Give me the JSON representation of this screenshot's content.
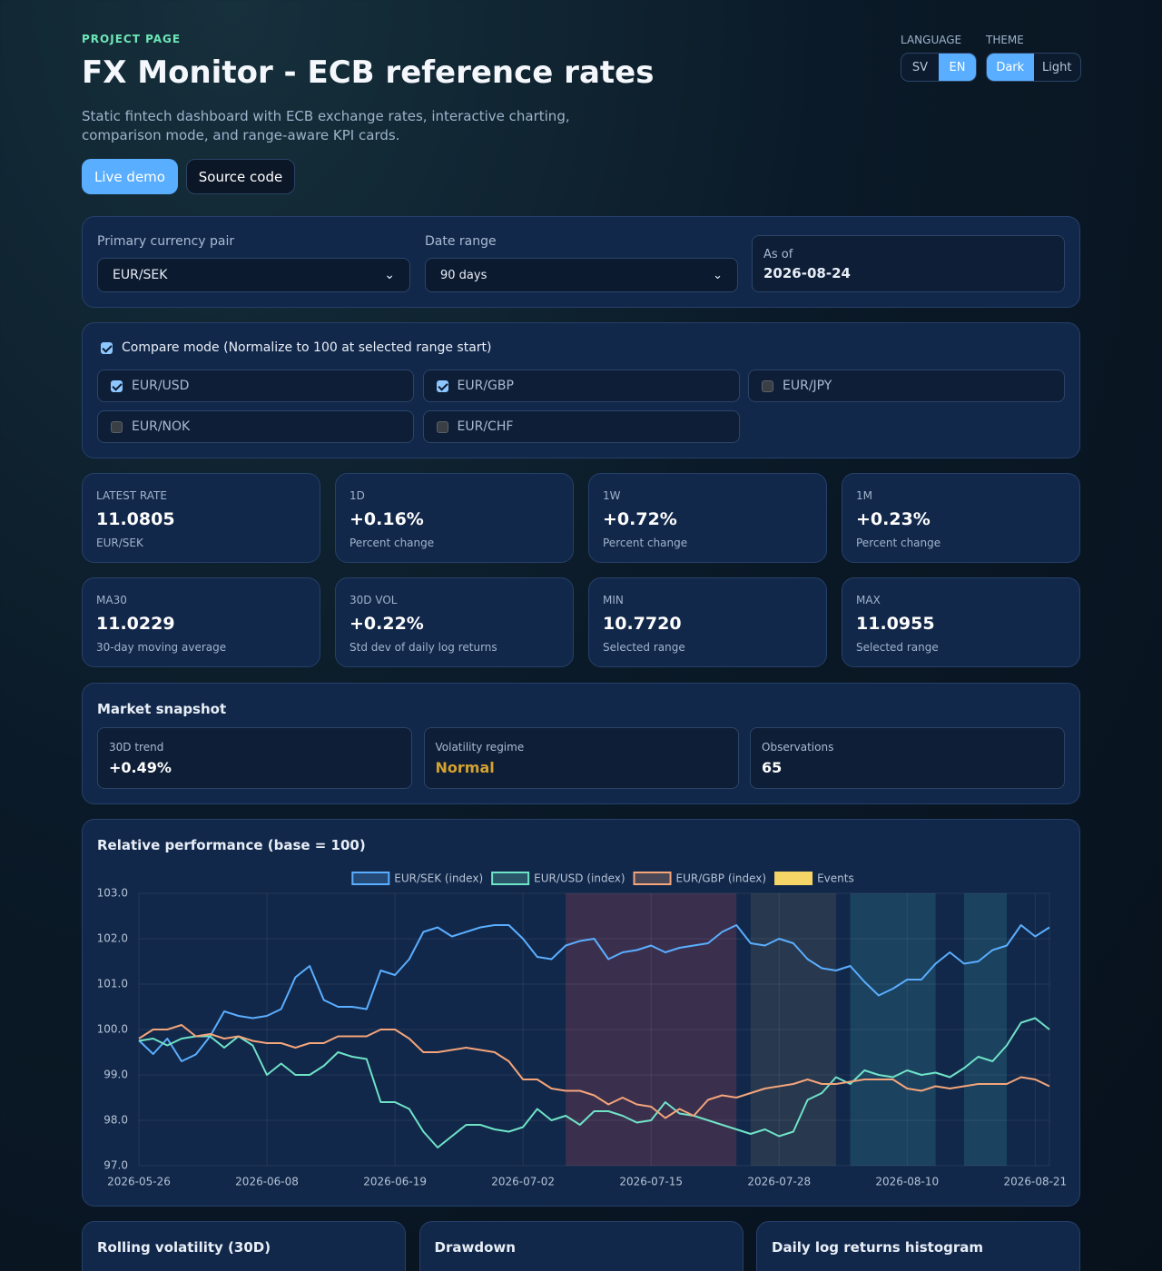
{
  "header": {
    "eyebrow": "PROJECT PAGE",
    "title": "FX Monitor - ECB reference rates",
    "subtitle": "Static fintech dashboard with ECB exchange rates, interactive charting, comparison mode, and range-aware KPI cards.",
    "buttons": [
      "Live demo",
      "Source code"
    ]
  },
  "language": {
    "label": "LANGUAGE",
    "options": [
      "SV",
      "EN"
    ],
    "active": 1
  },
  "theme": {
    "label": "THEME",
    "options": [
      "Dark",
      "Light"
    ],
    "active": 0
  },
  "controls": {
    "pair_label": "Primary currency pair",
    "pair_value": "EUR/SEK",
    "range_label": "Date range",
    "range_value": "90 days",
    "asof_label": "As of",
    "asof_value": "2026-08-24"
  },
  "compare": {
    "label": "Compare mode (Normalize to 100 at selected range start)",
    "checked": true,
    "pairs": [
      {
        "name": "EUR/USD",
        "checked": true
      },
      {
        "name": "EUR/GBP",
        "checked": true
      },
      {
        "name": "EUR/JPY",
        "checked": false
      },
      {
        "name": "EUR/NOK",
        "checked": false
      },
      {
        "name": "EUR/CHF",
        "checked": false
      }
    ]
  },
  "kpis": [
    {
      "label": "LATEST RATE",
      "value": "11.0805",
      "note": "EUR/SEK"
    },
    {
      "label": "1D",
      "value": "+0.16%",
      "note": "Percent change"
    },
    {
      "label": "1W",
      "value": "+0.72%",
      "note": "Percent change"
    },
    {
      "label": "1M",
      "value": "+0.23%",
      "note": "Percent change"
    },
    {
      "label": "MA30",
      "value": "11.0229",
      "note": "30-day moving average"
    },
    {
      "label": "30D VOL",
      "value": "+0.22%",
      "note": "Std dev of daily log returns"
    },
    {
      "label": "MIN",
      "value": "10.7720",
      "note": "Selected range"
    },
    {
      "label": "MAX",
      "value": "11.0955",
      "note": "Selected range"
    }
  ],
  "snapshot": {
    "title": "Market snapshot",
    "items": [
      {
        "label": "30D trend",
        "value": "+0.49%"
      },
      {
        "label": "Volatility regime",
        "value": "Normal"
      },
      {
        "label": "Observations",
        "value": "65"
      }
    ]
  },
  "chart_data": {
    "type": "line",
    "title": "Relative performance (base = 100)",
    "categories": [
      "2026-05-26",
      null,
      null,
      null,
      null,
      null,
      null,
      null,
      null,
      "2026-06-08",
      null,
      null,
      null,
      null,
      null,
      null,
      null,
      null,
      "2026-06-19",
      null,
      null,
      null,
      null,
      null,
      null,
      null,
      null,
      "2026-07-02",
      null,
      null,
      null,
      null,
      null,
      null,
      null,
      null,
      "2026-07-15",
      null,
      null,
      null,
      null,
      null,
      null,
      null,
      null,
      "2026-07-28",
      null,
      null,
      null,
      null,
      null,
      null,
      null,
      null,
      "2026-08-10",
      null,
      null,
      null,
      null,
      null,
      null,
      null,
      null,
      "2026-08-21",
      null
    ],
    "series": [
      {
        "name": "EUR/SEK (index)",
        "color": "#5aaeff",
        "values": [
          99.76,
          99.46,
          99.8,
          99.3,
          99.45,
          99.85,
          100.4,
          100.3,
          100.25,
          100.3,
          100.45,
          101.15,
          101.4,
          100.65,
          100.5,
          100.5,
          100.45,
          101.3,
          101.2,
          101.55,
          102.15,
          102.25,
          102.05,
          102.15,
          102.25,
          102.3,
          102.3,
          102.0,
          101.6,
          101.55,
          101.85,
          101.95,
          102.0,
          101.55,
          101.7,
          101.75,
          101.85,
          101.7,
          101.8,
          101.85,
          101.9,
          102.15,
          102.3,
          101.9,
          101.85,
          102.0,
          101.9,
          101.55,
          101.35,
          101.3,
          101.4,
          101.05,
          100.75,
          100.9,
          101.1,
          101.1,
          101.45,
          101.7,
          101.45,
          101.5,
          101.75,
          101.85,
          102.3,
          102.05,
          102.25
        ]
      },
      {
        "name": "EUR/USD (index)",
        "color": "#6fe3c8",
        "values": [
          99.75,
          99.8,
          99.65,
          99.8,
          99.85,
          99.85,
          99.6,
          99.85,
          99.65,
          99.0,
          99.25,
          99.0,
          99.0,
          99.2,
          99.5,
          99.4,
          99.35,
          98.4,
          98.4,
          98.25,
          97.75,
          97.4,
          97.65,
          97.9,
          97.9,
          97.8,
          97.75,
          97.85,
          98.25,
          98.0,
          98.1,
          97.9,
          98.2,
          98.2,
          98.1,
          97.95,
          98.0,
          98.4,
          98.15,
          98.1,
          98.0,
          97.9,
          97.8,
          97.7,
          97.8,
          97.65,
          97.75,
          98.45,
          98.6,
          98.95,
          98.8,
          99.1,
          99.0,
          98.95,
          99.1,
          99.0,
          99.05,
          98.95,
          99.15,
          99.4,
          99.3,
          99.65,
          100.15,
          100.25,
          100.0
        ]
      },
      {
        "name": "EUR/GBP (index)",
        "color": "#f4a57a",
        "values": [
          99.8,
          100.0,
          100.0,
          100.1,
          99.85,
          99.9,
          99.8,
          99.85,
          99.75,
          99.7,
          99.7,
          99.6,
          99.7,
          99.7,
          99.85,
          99.85,
          99.85,
          100.0,
          100.0,
          99.8,
          99.5,
          99.5,
          99.55,
          99.6,
          99.55,
          99.5,
          99.3,
          98.9,
          98.9,
          98.7,
          98.65,
          98.65,
          98.55,
          98.35,
          98.5,
          98.35,
          98.3,
          98.05,
          98.25,
          98.1,
          98.45,
          98.55,
          98.5,
          98.6,
          98.7,
          98.75,
          98.8,
          98.9,
          98.8,
          98.8,
          98.85,
          98.9,
          98.9,
          98.9,
          98.7,
          98.65,
          98.75,
          98.7,
          98.75,
          98.8,
          98.8,
          98.8,
          98.95,
          98.9,
          98.75
        ]
      }
    ],
    "events": {
      "name": "Events",
      "color": "#f5d565",
      "ranges": [
        {
          "start": 30,
          "end": 42,
          "color": "#7a3a55"
        },
        {
          "start": 43,
          "end": 49,
          "color": "#4a4f55"
        },
        {
          "start": 50,
          "end": 56,
          "color": "#2a6a80"
        },
        {
          "start": 58,
          "end": 61,
          "color": "#2a6a80"
        }
      ]
    },
    "ylim": [
      97,
      103
    ],
    "yticks": [
      {
        "value": 97,
        "label": "97.0"
      },
      {
        "value": 98,
        "label": "98.0"
      },
      {
        "value": 99,
        "label": "99.0"
      },
      {
        "value": 100,
        "label": "100.0"
      },
      {
        "value": 101,
        "label": "101.0"
      },
      {
        "value": 102,
        "label": "102.0"
      },
      {
        "value": 103,
        "label": "103.0"
      }
    ],
    "grid": true
  },
  "bottom_cards": [
    "Rolling volatility (30D)",
    "Drawdown",
    "Daily log returns histogram"
  ]
}
